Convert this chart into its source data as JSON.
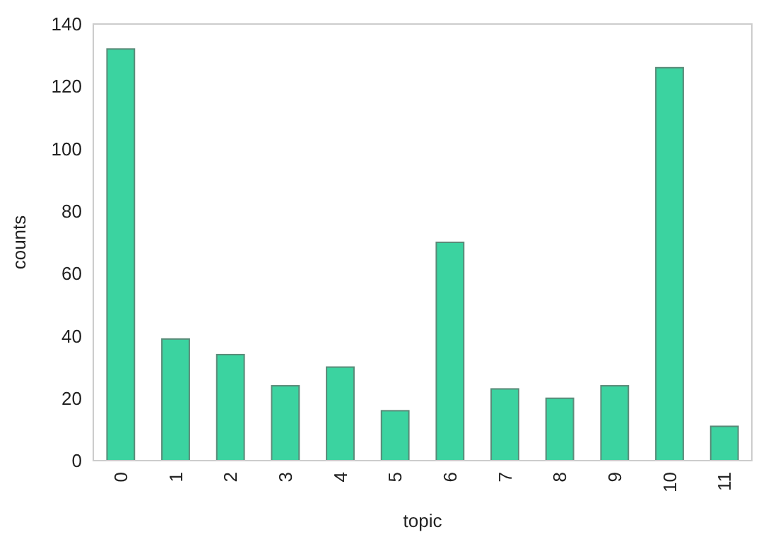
{
  "chart_data": {
    "type": "bar",
    "xlabel": "topic",
    "ylabel": "counts",
    "categories": [
      "0",
      "1",
      "2",
      "3",
      "4",
      "5",
      "6",
      "7",
      "8",
      "9",
      "10",
      "11"
    ],
    "values": [
      132,
      39,
      34,
      24,
      30,
      16,
      70,
      23,
      20,
      24,
      126,
      11
    ],
    "color": "#3bd3a0",
    "ylim": [
      0,
      140
    ],
    "yticks": [
      0,
      20,
      40,
      60,
      80,
      100,
      120,
      140
    ],
    "grid": false
  }
}
